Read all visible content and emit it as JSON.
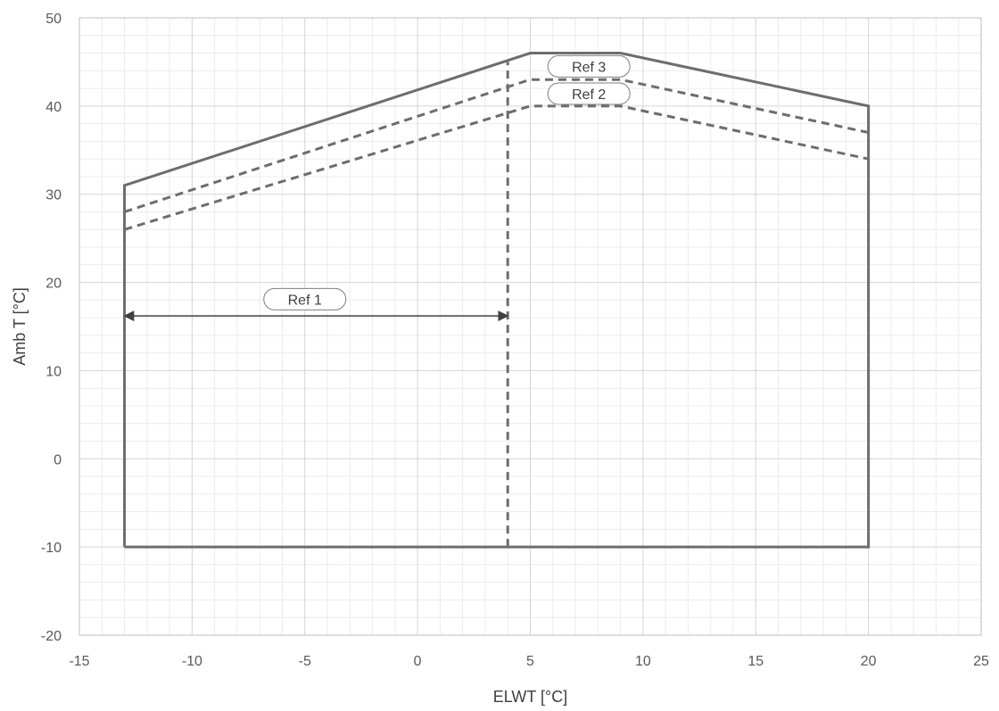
{
  "chart_data": {
    "type": "line",
    "xlabel": "ELWT [°C]",
    "ylabel": "Amb T [°C]",
    "xlim": [
      -15,
      25
    ],
    "ylim": [
      -20,
      50
    ],
    "x_ticks": [
      -15,
      -10,
      -5,
      0,
      5,
      10,
      15,
      20,
      25
    ],
    "y_ticks": [
      -20,
      -10,
      0,
      10,
      20,
      30,
      40,
      50
    ],
    "x_minor_step": 1,
    "y_minor_step": 2,
    "grid": true,
    "series": [
      {
        "style": "solid",
        "color": "#6d6d6d",
        "points": [
          [
            -13,
            -10
          ],
          [
            -13,
            31
          ],
          [
            5,
            46
          ],
          [
            9,
            46
          ],
          [
            20,
            40
          ],
          [
            20,
            -10
          ],
          [
            -13,
            -10
          ]
        ]
      },
      {
        "style": "dashed",
        "color": "#6d6d6d",
        "points": [
          [
            -13,
            28
          ],
          [
            5,
            43
          ],
          [
            9,
            43
          ],
          [
            20,
            37
          ]
        ]
      },
      {
        "style": "dashed",
        "color": "#6d6d6d",
        "points": [
          [
            -13,
            26
          ],
          [
            5,
            40
          ],
          [
            9,
            40
          ],
          [
            20,
            34
          ]
        ]
      },
      {
        "style": "dashed",
        "color": "#6d6d6d",
        "points": [
          [
            4,
            -10
          ],
          [
            4,
            45
          ]
        ]
      }
    ],
    "annotations": [
      {
        "text": "Ref 1",
        "x": -5,
        "y": 18.1
      },
      {
        "text": "Ref 2",
        "x": 7.6,
        "y": 41.4
      },
      {
        "text": "Ref 3",
        "x": 7.6,
        "y": 44.5
      }
    ],
    "arrow": {
      "x_from": -13,
      "x_to": 4,
      "y": 16.2
    }
  }
}
